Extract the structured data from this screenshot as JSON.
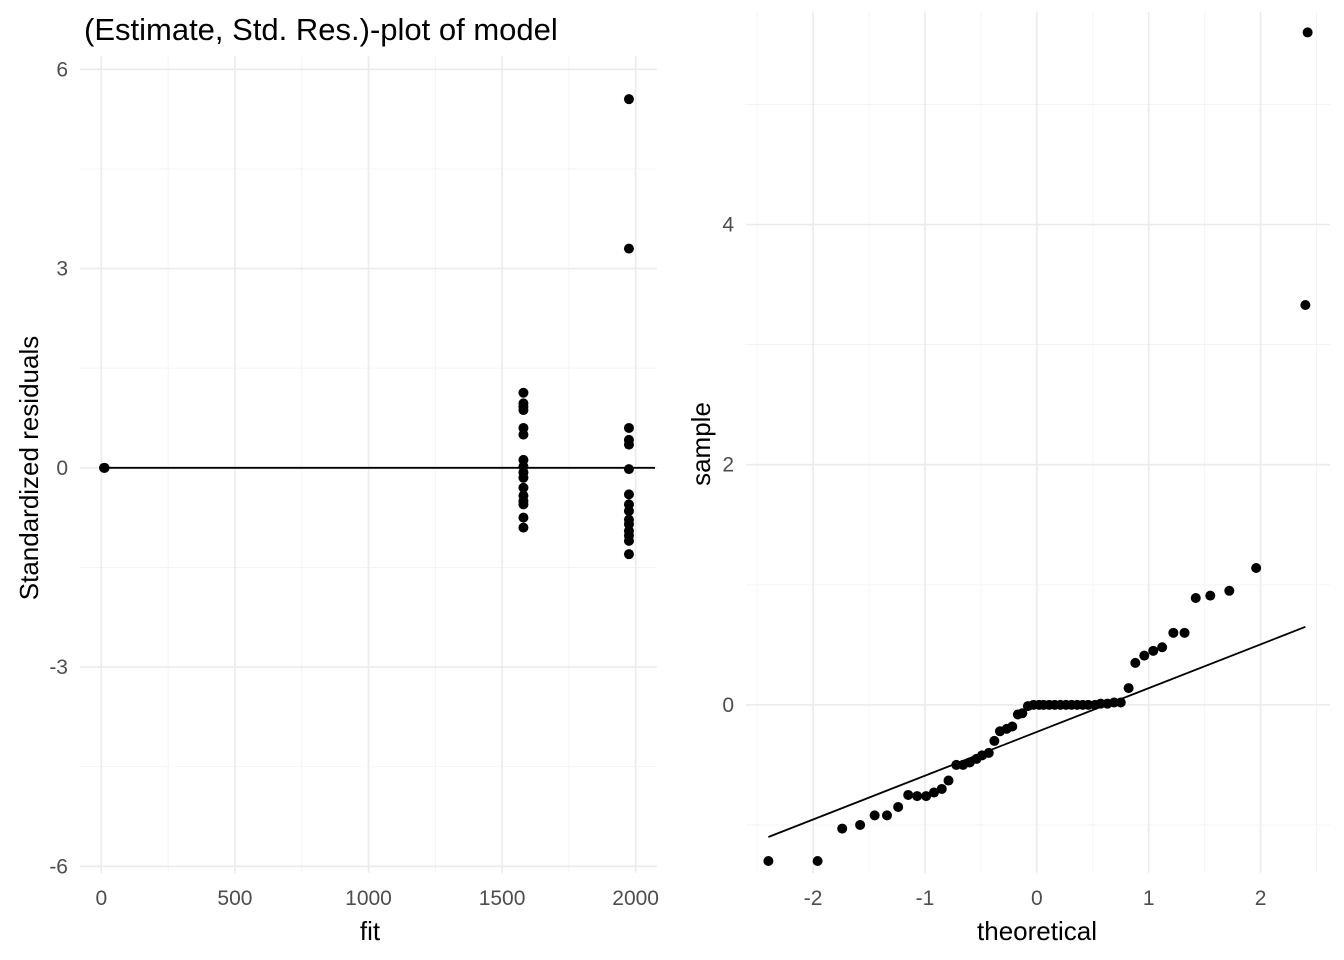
{
  "chart_data": [
    {
      "type": "scatter",
      "title": "(Estimate, Std. Res.)-plot of model",
      "xlabel": "fit",
      "ylabel": "Standardized residuals",
      "xlim": [
        -80,
        2080
      ],
      "ylim": [
        -6.1,
        6.2
      ],
      "xticks": [
        "0",
        "500",
        "1000",
        "1500",
        "2000"
      ],
      "xtick_values": [
        0,
        500,
        1000,
        1500,
        2000
      ],
      "yticks": [
        "-6",
        "-3",
        "0",
        "3",
        "6"
      ],
      "ytick_values": [
        -6,
        -3,
        0,
        3,
        6
      ],
      "grid": true,
      "hline": 0,
      "points": [
        [
          10,
          0
        ],
        [
          12,
          0
        ],
        [
          1580,
          1.13
        ],
        [
          1580,
          0.97
        ],
        [
          1580,
          0.92
        ],
        [
          1580,
          0.87
        ],
        [
          1580,
          0.6
        ],
        [
          1580,
          0.5
        ],
        [
          1580,
          0.12
        ],
        [
          1580,
          0.02
        ],
        [
          1580,
          -0.07
        ],
        [
          1580,
          -0.15
        ],
        [
          1580,
          -0.3
        ],
        [
          1580,
          -0.42
        ],
        [
          1580,
          -0.5
        ],
        [
          1580,
          -0.55
        ],
        [
          1580,
          -0.75
        ],
        [
          1580,
          -0.9
        ],
        [
          1975,
          5.55
        ],
        [
          1975,
          3.3
        ],
        [
          1975,
          0.6
        ],
        [
          1975,
          0.42
        ],
        [
          1975,
          0.35
        ],
        [
          1975,
          -0.02
        ],
        [
          1975,
          -0.4
        ],
        [
          1975,
          -0.55
        ],
        [
          1975,
          -0.65
        ],
        [
          1975,
          -0.78
        ],
        [
          1975,
          -0.85
        ],
        [
          1975,
          -0.95
        ],
        [
          1975,
          -1.02
        ],
        [
          1975,
          -1.1
        ],
        [
          1975,
          -1.3
        ]
      ]
    },
    {
      "type": "scatter",
      "title": "",
      "xlabel": "theoretical",
      "ylabel": "sample",
      "xlim": [
        -2.6,
        2.62
      ],
      "ylim": [
        -1.4,
        5.77
      ],
      "xticks": [
        "-2",
        "-1",
        "0",
        "1",
        "2"
      ],
      "xtick_values": [
        -2,
        -1,
        0,
        1,
        2
      ],
      "yticks": [
        "0",
        "2",
        "4"
      ],
      "ytick_values": [
        0,
        2,
        4
      ],
      "grid": true,
      "reference_line": {
        "x": [
          -2.4,
          2.4
        ],
        "y": [
          -1.1,
          0.65
        ]
      },
      "points": [
        [
          -2.4,
          -1.3
        ],
        [
          -1.96,
          -1.3
        ],
        [
          -1.74,
          -1.03
        ],
        [
          -1.58,
          -1.0
        ],
        [
          -1.45,
          -0.92
        ],
        [
          -1.34,
          -0.92
        ],
        [
          -1.24,
          -0.85
        ],
        [
          -1.15,
          -0.75
        ],
        [
          -1.07,
          -0.76
        ],
        [
          -0.99,
          -0.76
        ],
        [
          -0.92,
          -0.73
        ],
        [
          -0.85,
          -0.7
        ],
        [
          -0.79,
          -0.63
        ],
        [
          -0.72,
          -0.5
        ],
        [
          -0.66,
          -0.5
        ],
        [
          -0.6,
          -0.48
        ],
        [
          -0.54,
          -0.45
        ],
        [
          -0.49,
          -0.42
        ],
        [
          -0.43,
          -0.4
        ],
        [
          -0.38,
          -0.3
        ],
        [
          -0.33,
          -0.22
        ],
        [
          -0.27,
          -0.2
        ],
        [
          -0.22,
          -0.18
        ],
        [
          -0.17,
          -0.08
        ],
        [
          -0.13,
          -0.07
        ],
        [
          -0.08,
          -0.01
        ],
        [
          -0.03,
          0.0
        ],
        [
          0.02,
          0.0
        ],
        [
          0.06,
          0.0
        ],
        [
          0.11,
          0.0
        ],
        [
          0.16,
          0.0
        ],
        [
          0.21,
          0.0
        ],
        [
          0.26,
          0.0
        ],
        [
          0.31,
          0.0
        ],
        [
          0.36,
          0.0
        ],
        [
          0.41,
          0.0
        ],
        [
          0.46,
          0.0
        ],
        [
          0.52,
          0.0
        ],
        [
          0.57,
          0.01
        ],
        [
          0.63,
          0.01
        ],
        [
          0.69,
          0.02
        ],
        [
          0.75,
          0.02
        ],
        [
          0.82,
          0.14
        ],
        [
          0.88,
          0.35
        ],
        [
          0.96,
          0.41
        ],
        [
          1.04,
          0.45
        ],
        [
          1.12,
          0.48
        ],
        [
          1.22,
          0.6
        ],
        [
          1.32,
          0.6
        ],
        [
          1.42,
          0.89
        ],
        [
          1.55,
          0.91
        ],
        [
          1.72,
          0.95
        ],
        [
          1.96,
          1.14
        ],
        [
          2.4,
          3.33
        ],
        [
          2.42,
          5.6
        ]
      ]
    }
  ]
}
